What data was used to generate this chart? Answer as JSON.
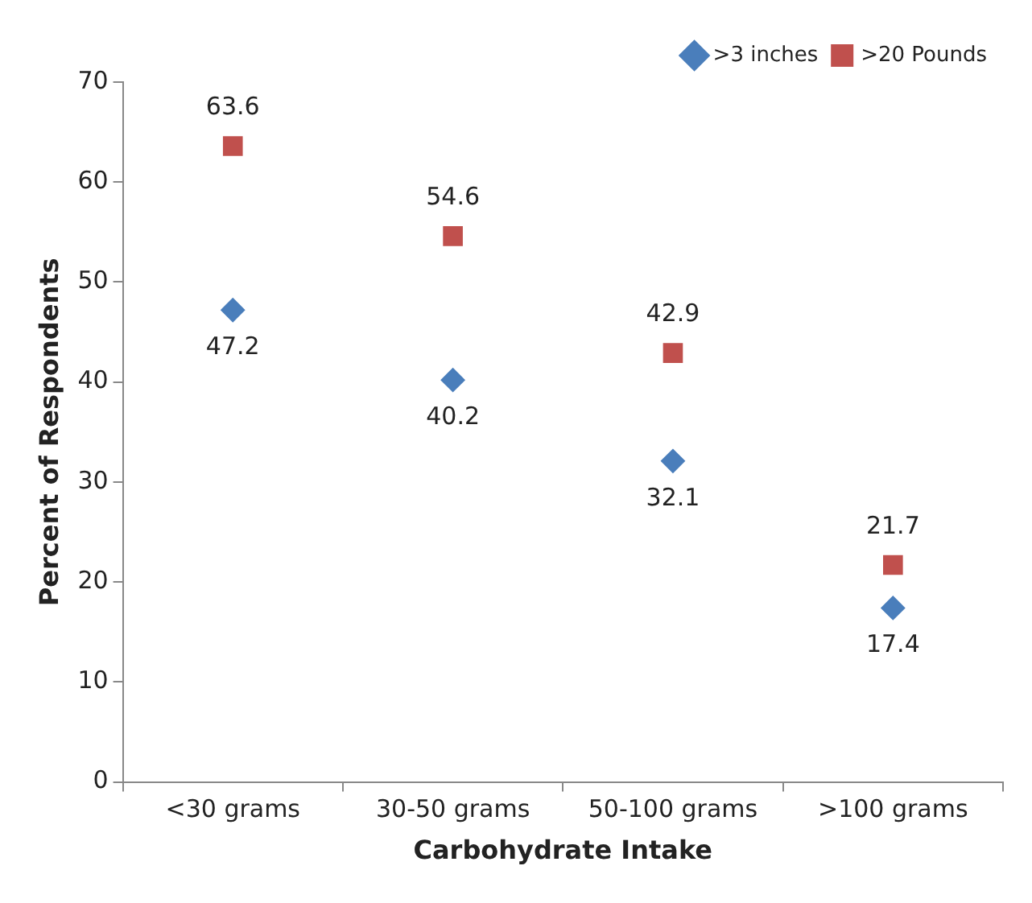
{
  "chart_data": {
    "type": "scatter",
    "xlabel": "Carbohydrate Intake",
    "ylabel": "Percent of Respondents",
    "categories": [
      "<30 grams",
      "30-50 grams",
      "50-100 grams",
      ">100 grams"
    ],
    "series": [
      {
        "name": ">3 inches",
        "color": "#4a7ebb",
        "marker": "diamond",
        "values": [
          47.2,
          40.2,
          32.1,
          17.4
        ]
      },
      {
        "name": ">20 Pounds",
        "color": "#c0504d",
        "marker": "square",
        "values": [
          63.6,
          54.6,
          42.9,
          21.7
        ]
      }
    ],
    "ylim": [
      0,
      70
    ],
    "yticks": [
      0,
      10,
      20,
      30,
      40,
      50,
      60,
      70
    ],
    "grid": false,
    "legend": "top right",
    "data_labels": true
  }
}
